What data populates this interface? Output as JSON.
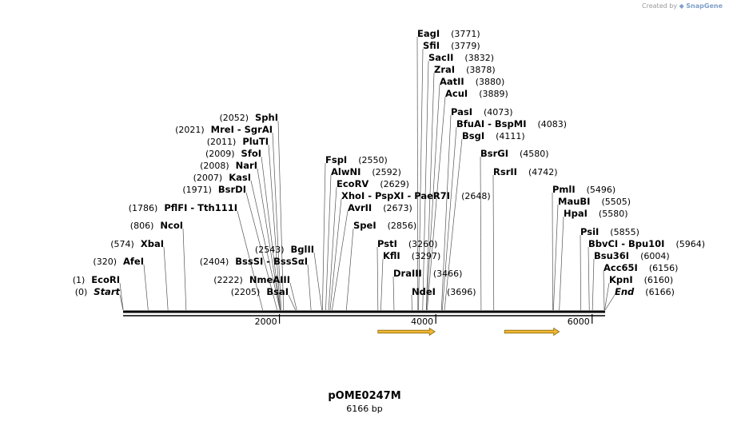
{
  "credit": {
    "text": "Created by",
    "brand": "SnapGene"
  },
  "plasmid": {
    "name": "pOME0247M",
    "length_label": "6166 bp",
    "length": 6166
  },
  "ticks": [
    {
      "pos": 2000,
      "label": "2000"
    },
    {
      "pos": 4000,
      "label": "4000"
    },
    {
      "pos": 6000,
      "label": "6000"
    }
  ],
  "features": [
    {
      "start": 3260,
      "end": 3990,
      "direction": "forward"
    },
    {
      "start": 4880,
      "end": 5580,
      "direction": "forward"
    }
  ],
  "colors": {
    "feature": "#f2b731",
    "feature_edge": "#8a6a10",
    "backbone": "#000000",
    "leader": "#555555"
  },
  "sites": [
    {
      "label": "Start",
      "pos": 0,
      "num": "(0)",
      "italic": true
    },
    {
      "label": "EcoRI",
      "pos": 1,
      "num": "(1)"
    },
    {
      "label": "AfeI",
      "pos": 320,
      "num": "(320)"
    },
    {
      "label": "XbaI",
      "pos": 574,
      "num": "(574)"
    },
    {
      "label": "NcoI",
      "pos": 806,
      "num": "(806)"
    },
    {
      "label": "PflFI - Tth111I",
      "pos": 1786,
      "num": "(1786)"
    },
    {
      "label": "BsrDI",
      "pos": 1971,
      "num": "(1971)"
    },
    {
      "label": "KasI",
      "pos": 2007,
      "num": "(2007)"
    },
    {
      "label": "NarI",
      "pos": 2008,
      "num": "(2008)"
    },
    {
      "label": "SfoI",
      "pos": 2009,
      "num": "(2009)"
    },
    {
      "label": "PluTI",
      "pos": 2011,
      "num": "(2011)"
    },
    {
      "label": "MreI - SgrAI",
      "pos": 2021,
      "num": "(2021)"
    },
    {
      "label": "SphI",
      "pos": 2052,
      "num": "(2052)"
    },
    {
      "label": "BsaI",
      "pos": 2205,
      "num": "(2205)"
    },
    {
      "label": "NmeAIII",
      "pos": 2222,
      "num": "(2222)"
    },
    {
      "label": "BssSI - BssSαI",
      "pos": 2404,
      "num": "(2404)"
    },
    {
      "label": "BglII",
      "pos": 2543,
      "num": "(2543)"
    },
    {
      "label": "FspI",
      "pos": 2550,
      "num": "(2550)"
    },
    {
      "label": "AlwNI",
      "pos": 2592,
      "num": "(2592)"
    },
    {
      "label": "EcoRV",
      "pos": 2629,
      "num": "(2629)"
    },
    {
      "label": "XhoI - PspXI - PaeR7I",
      "pos": 2648,
      "num": "(2648)"
    },
    {
      "label": "AvrII",
      "pos": 2673,
      "num": "(2673)"
    },
    {
      "label": "SpeI",
      "pos": 2856,
      "num": "(2856)"
    },
    {
      "label": "PstI",
      "pos": 3260,
      "num": "(3260)"
    },
    {
      "label": "KflI",
      "pos": 3297,
      "num": "(3297)"
    },
    {
      "label": "DraIII",
      "pos": 3466,
      "num": "(3466)"
    },
    {
      "label": "NdeI",
      "pos": 3696,
      "num": "(3696)"
    },
    {
      "label": "EagI",
      "pos": 3771,
      "num": "(3771)"
    },
    {
      "label": "SfiI",
      "pos": 3779,
      "num": "(3779)"
    },
    {
      "label": "SacII",
      "pos": 3832,
      "num": "(3832)"
    },
    {
      "label": "ZraI",
      "pos": 3878,
      "num": "(3878)"
    },
    {
      "label": "AatII",
      "pos": 3880,
      "num": "(3880)"
    },
    {
      "label": "AcuI",
      "pos": 3889,
      "num": "(3889)"
    },
    {
      "label": "PasI",
      "pos": 4073,
      "num": "(4073)"
    },
    {
      "label": "BfuAI - BspMI",
      "pos": 4083,
      "num": "(4083)"
    },
    {
      "label": "BsgI",
      "pos": 4111,
      "num": "(4111)"
    },
    {
      "label": "BsrGI",
      "pos": 4580,
      "num": "(4580)"
    },
    {
      "label": "RsrII",
      "pos": 4742,
      "num": "(4742)"
    },
    {
      "label": "PmlI",
      "pos": 5496,
      "num": "(5496)"
    },
    {
      "label": "MauBI",
      "pos": 5505,
      "num": "(5505)"
    },
    {
      "label": "HpaI",
      "pos": 5580,
      "num": "(5580)"
    },
    {
      "label": "PsiI",
      "pos": 5855,
      "num": "(5855)"
    },
    {
      "label": "BbvCI - Bpu10I",
      "pos": 5964,
      "num": "(5964)"
    },
    {
      "label": "Bsu36I",
      "pos": 6004,
      "num": "(6004)"
    },
    {
      "label": "Acc65I",
      "pos": 6156,
      "num": "(6156)"
    },
    {
      "label": "KpnI",
      "pos": 6160,
      "num": "(6160)"
    },
    {
      "label": "End",
      "pos": 6166,
      "num": "(6166)",
      "italic": true
    }
  ]
}
